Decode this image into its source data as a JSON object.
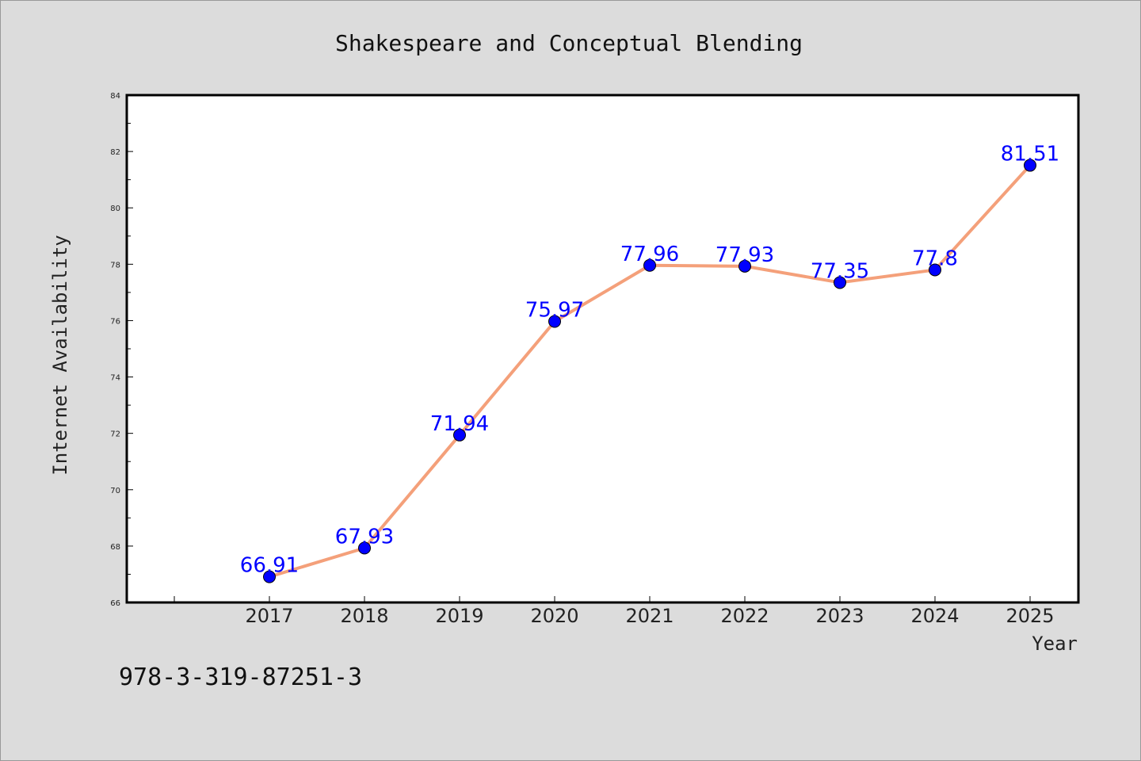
{
  "chart_data": {
    "type": "line",
    "title": "Shakespeare and Conceptual Blending",
    "xlabel": "Year",
    "ylabel": "Internet Availability",
    "x": [
      "2017",
      "2018",
      "2019",
      "2020",
      "2021",
      "2022",
      "2023",
      "2024",
      "2025"
    ],
    "series": [
      {
        "values": [
          66.91,
          67.93,
          71.94,
          75.97,
          77.96,
          77.93,
          77.35,
          77.8,
          81.51
        ],
        "data_labels": [
          "66.91",
          "67.93",
          "71.94",
          "75.97",
          "77.96",
          "77.93",
          "77.35",
          "77.8",
          "81.51"
        ],
        "line_color": "#f4a07a",
        "marker_color": "#0000ff"
      }
    ],
    "yticks": [
      "66",
      "68",
      "70",
      "72",
      "74",
      "76",
      "78",
      "80",
      "82",
      "84"
    ],
    "ylim": [
      66,
      84
    ],
    "grid": false,
    "legend": "none"
  },
  "footer": {
    "isbn": "978-3-319-87251-3"
  }
}
